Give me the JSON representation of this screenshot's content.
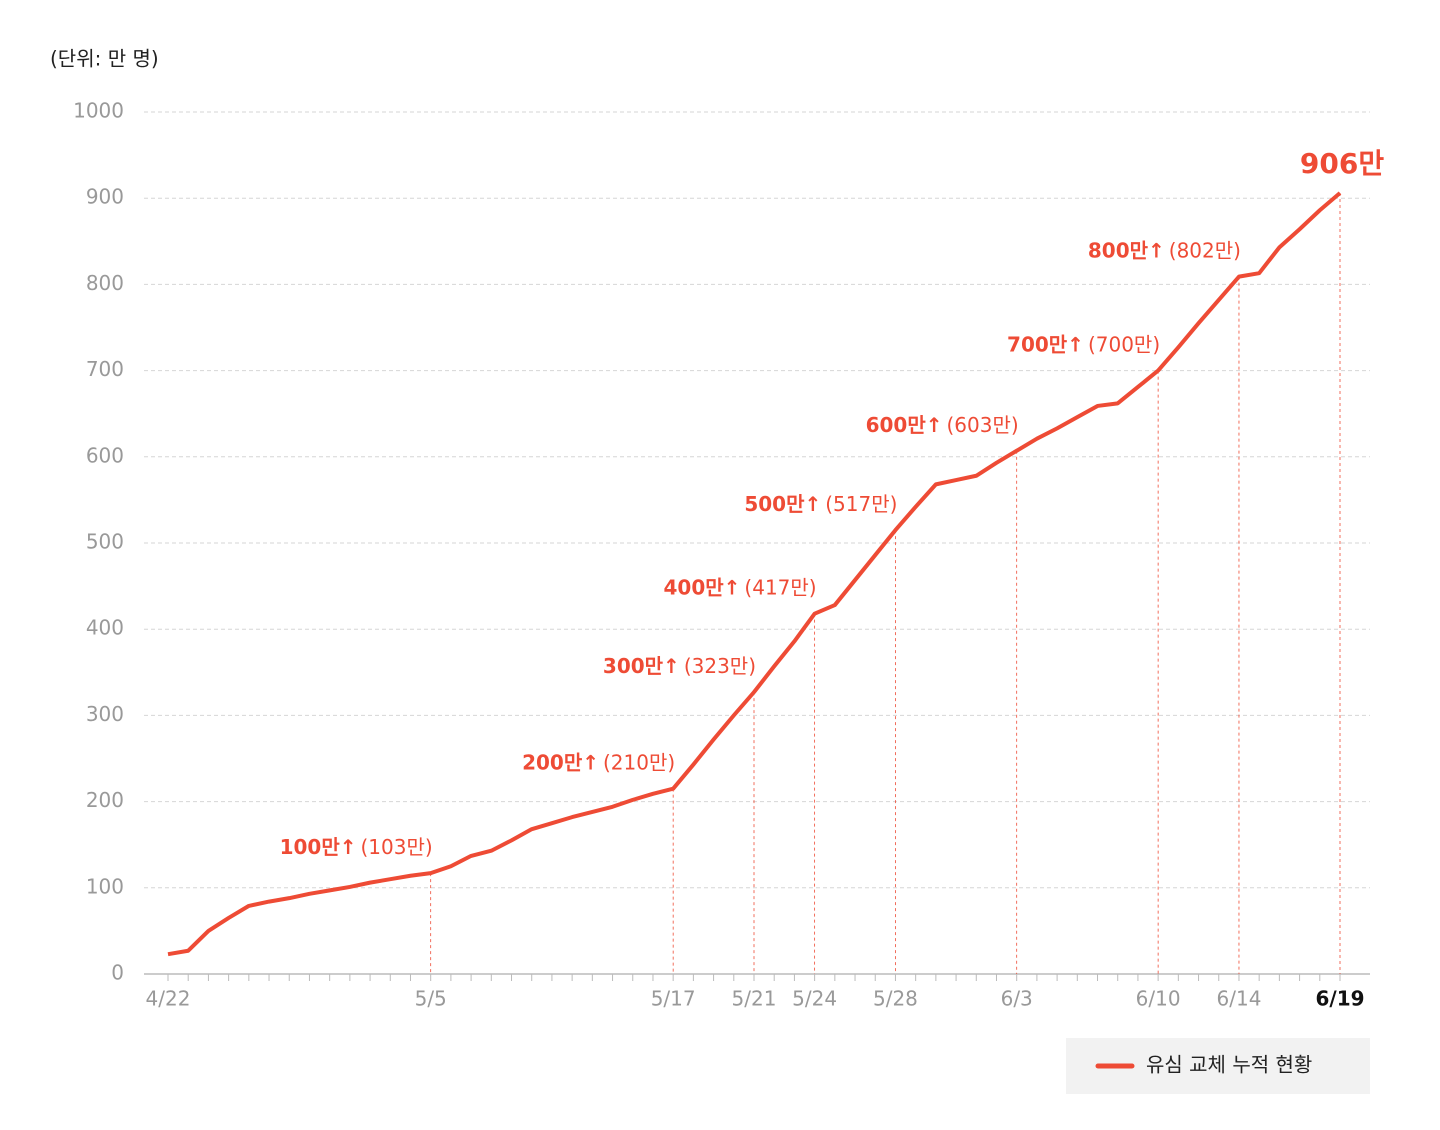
{
  "chart_data": {
    "type": "line",
    "unit_label": "(단위: 만 명)",
    "categories": [
      "4/22",
      null,
      null,
      null,
      null,
      null,
      null,
      null,
      null,
      null,
      null,
      null,
      null,
      "5/5",
      null,
      null,
      null,
      null,
      null,
      null,
      null,
      null,
      null,
      null,
      null,
      "5/17",
      null,
      null,
      null,
      "5/21",
      null,
      null,
      "5/24",
      null,
      null,
      null,
      "5/28",
      null,
      null,
      null,
      null,
      null,
      "6/3",
      null,
      null,
      null,
      null,
      null,
      null,
      "6/10",
      null,
      null,
      null,
      "6/14",
      null,
      null,
      null,
      null,
      "6/19"
    ],
    "series": [
      {
        "name": "유심 교체 누적 현황",
        "color": "#ee4b35",
        "values": [
          23,
          27,
          50,
          65,
          79,
          84,
          88,
          93,
          97,
          101,
          106,
          110,
          114,
          117,
          125,
          137,
          143,
          155,
          168,
          175,
          182,
          188,
          194,
          202,
          209,
          215,
          243,
          272,
          300,
          327,
          357,
          386,
          418,
          428,
          457,
          486,
          515,
          542,
          568,
          573,
          578,
          593,
          607,
          621,
          633,
          646,
          659,
          662,
          681,
          700,
          727,
          755,
          782,
          809,
          813,
          843,
          864,
          886,
          906
        ],
        "value_labels": [
          null,
          null,
          null,
          null,
          null,
          null,
          null,
          null,
          null,
          null,
          null,
          null,
          null,
          null,
          null,
          null,
          null,
          null,
          null,
          null,
          null,
          null,
          null,
          null,
          null,
          null,
          null,
          null,
          null,
          null,
          null,
          null,
          null,
          null,
          null,
          null,
          null,
          null,
          null,
          null,
          null,
          null,
          null,
          null,
          null,
          null,
          null,
          null,
          null,
          null,
          null,
          null,
          null,
          null,
          null,
          null,
          null,
          null,
          "906만"
        ]
      }
    ],
    "annotations": [
      {
        "milestone": "100만↑",
        "actual": "(103만)"
      },
      {
        "milestone": "200만↑",
        "actual": "(210만)"
      },
      {
        "milestone": "300만↑",
        "actual": "(323만)"
      },
      {
        "milestone": "400만↑",
        "actual": "(417만)"
      },
      {
        "milestone": "500만↑",
        "actual": "(517만)"
      },
      {
        "milestone": "600만↑",
        "actual": "(603만)"
      },
      {
        "milestone": "700만↑",
        "actual": "(700만)"
      },
      {
        "milestone": "800만↑",
        "actual": "(802만)"
      }
    ],
    "ylim": [
      0,
      1000
    ],
    "yticks": [
      0,
      100,
      200,
      300,
      400,
      500,
      600,
      700,
      800,
      900,
      1000
    ],
    "grid": true,
    "legend": "bottom-right"
  }
}
